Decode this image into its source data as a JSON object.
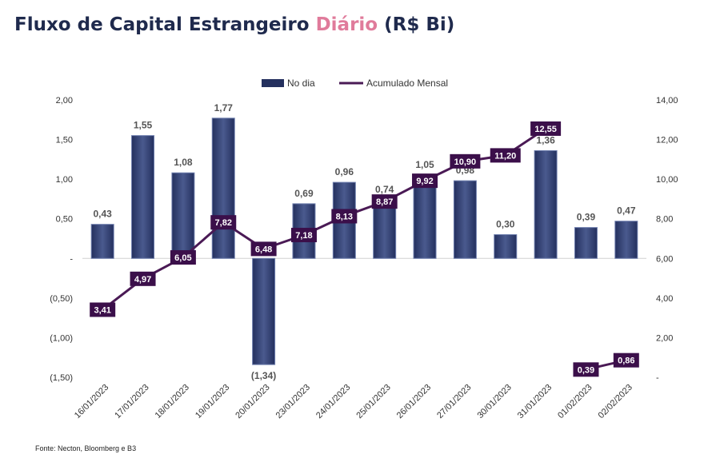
{
  "title": {
    "part1": "Fluxo de Capital Estrangeiro ",
    "accent": "Diário",
    "part2": " (R$ Bi)"
  },
  "source": "Fonte: Necton, Bloomberg e B3",
  "colors": {
    "bar": "#24305e",
    "bar_light": "#4a5a8e",
    "line": "#4a1a55",
    "label_box": "#3b0f4a",
    "accent": "#e07b9b"
  },
  "chart_data": {
    "type": "bar",
    "categories": [
      "16/01/2023",
      "17/01/2023",
      "18/01/2023",
      "19/01/2023",
      "20/01/2023",
      "23/01/2023",
      "24/01/2023",
      "25/01/2023",
      "26/01/2023",
      "27/01/2023",
      "30/01/2023",
      "31/01/2023",
      "01/02/2023",
      "02/02/2023"
    ],
    "series": [
      {
        "name": "No dia",
        "type": "bar",
        "axis": "left",
        "values": [
          0.43,
          1.55,
          1.08,
          1.77,
          -1.34,
          0.69,
          0.96,
          0.74,
          1.05,
          0.98,
          0.3,
          1.36,
          0.39,
          0.47
        ],
        "labels": [
          "0,43",
          "1,55",
          "1,08",
          "1,77",
          "(1,34)",
          "0,69",
          "0,96",
          "0,74",
          "1,05",
          "0,98",
          "0,30",
          "1,36",
          "0,39",
          "0,47"
        ]
      },
      {
        "name": "Acumulado Mensal",
        "type": "line",
        "axis": "right",
        "values": [
          3.41,
          4.97,
          6.05,
          7.82,
          6.48,
          7.18,
          8.13,
          8.87,
          9.92,
          10.9,
          11.2,
          12.55,
          0.39,
          0.86
        ],
        "labels": [
          "3,41",
          "4,97",
          "6,05",
          "7,82",
          "6,48",
          "7,18",
          "8,13",
          "8,87",
          "9,92",
          "10,90",
          "11,20",
          "12,55",
          "0,39",
          "0,86"
        ],
        "segments": [
          [
            0,
            11
          ],
          [
            12,
            13
          ]
        ]
      }
    ],
    "left_axis": {
      "ylim": [
        -1.5,
        2.0
      ],
      "ticks": [
        2.0,
        1.5,
        1.0,
        0.5,
        0,
        -0.5,
        -1.0,
        -1.5
      ],
      "tick_labels": [
        "2,00",
        "1,50",
        "1,00",
        "0,50",
        "-",
        "(0,50)",
        "(1,00)",
        "(1,50)"
      ]
    },
    "right_axis": {
      "ylim": [
        0,
        14
      ],
      "ticks": [
        14,
        12,
        10,
        8,
        6,
        4,
        2,
        0
      ],
      "tick_labels": [
        "14,00",
        "12,00",
        "10,00",
        "8,00",
        "6,00",
        "4,00",
        "2,00",
        "-"
      ]
    },
    "legend_position": "top-center",
    "grid": false
  }
}
